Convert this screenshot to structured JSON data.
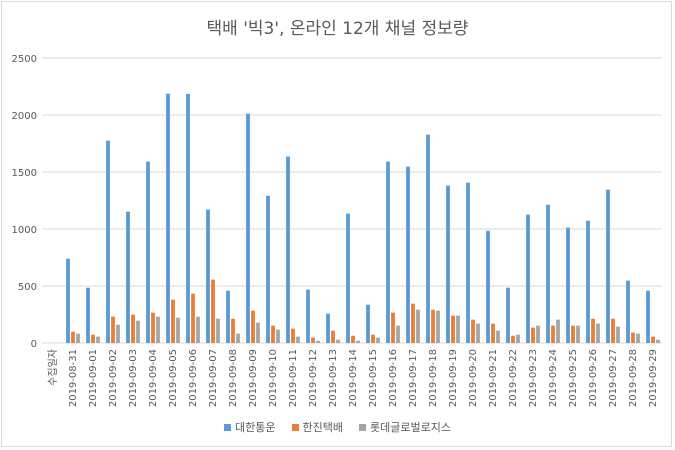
{
  "chart_data": {
    "type": "bar",
    "title": "택배 '빅3', 온라인 12개 채널 정보량",
    "xlabel": "",
    "ylabel": "",
    "ylim": [
      0,
      2500
    ],
    "yticks": [
      0,
      500,
      1000,
      1500,
      2000,
      2500
    ],
    "grid": true,
    "legend_position": "bottom",
    "categories": [
      "수집일자",
      "2019-08-31",
      "2019-09-01",
      "2019-09-02",
      "2019-09-03",
      "2019-09-04",
      "2019-09-05",
      "2019-09-06",
      "2019-09-07",
      "2019-09-08",
      "2019-09-09",
      "2019-09-10",
      "2019-09-11",
      "2019-09-12",
      "2019-09-13",
      "2019-09-14",
      "2019-09-15",
      "2019-09-16",
      "2019-09-17",
      "2019-09-18",
      "2019-09-19",
      "2019-09-20",
      "2019-09-21",
      "2019-09-22",
      "2019-09-23",
      "2019-09-24",
      "2019-09-25",
      "2019-09-26",
      "2019-09-27",
      "2019-09-28",
      "2019-09-29"
    ],
    "series": [
      {
        "name": "대한통운",
        "color": "#5b9bd5",
        "values": [
          null,
          740,
          485,
          1775,
          1152,
          1591,
          2187,
          2185,
          1170,
          459,
          2012,
          1292,
          1635,
          468,
          257,
          1135,
          336,
          1591,
          1547,
          1827,
          1380,
          1406,
          985,
          485,
          1126,
          1213,
          1012,
          1073,
          1345,
          547,
          459
        ]
      },
      {
        "name": "한진택배",
        "color": "#ed7d31",
        "values": [
          null,
          99,
          73,
          231,
          249,
          266,
          380,
          433,
          556,
          213,
          284,
          152,
          126,
          47,
          108,
          64,
          73,
          266,
          345,
          292,
          240,
          205,
          170,
          64,
          135,
          152,
          152,
          213,
          213,
          91,
          56
        ]
      },
      {
        "name": "롯데글로벌로지스",
        "color": "#a5a5a5",
        "values": [
          null,
          82,
          56,
          161,
          196,
          231,
          222,
          231,
          213,
          82,
          178,
          117,
          56,
          20,
          29,
          20,
          47,
          152,
          292,
          284,
          240,
          170,
          108,
          73,
          152,
          205,
          152,
          170,
          143,
          82,
          29
        ]
      }
    ]
  }
}
